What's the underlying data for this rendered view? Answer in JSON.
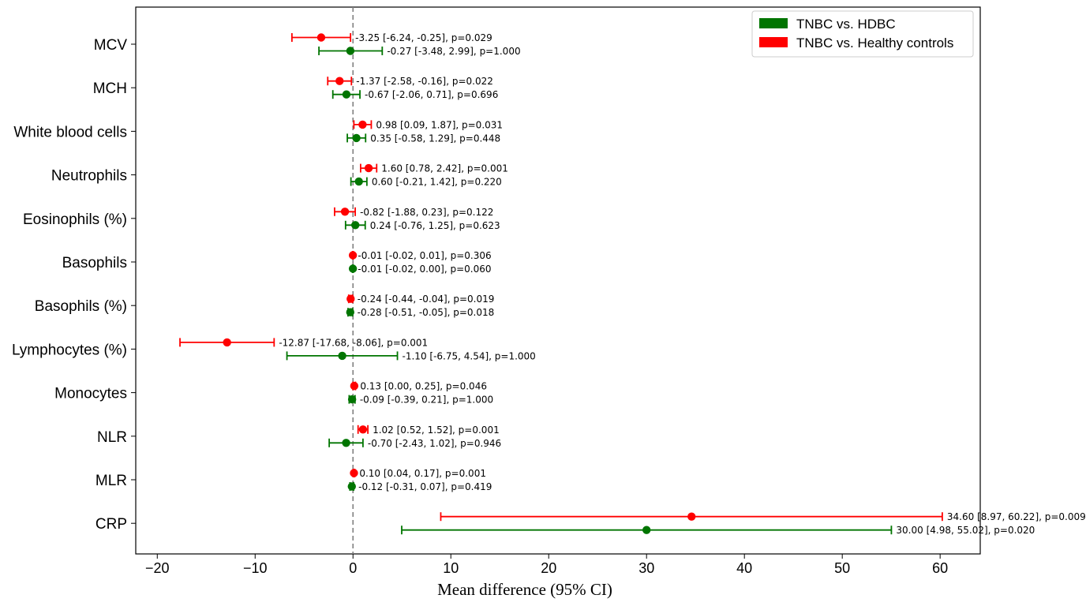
{
  "chart_data": {
    "type": "forest",
    "title": "",
    "xlabel": "Mean difference (95% CI)",
    "ylabel": "",
    "xlim": [
      -22.2,
      64.1
    ],
    "xticks": [
      -20,
      -10,
      0,
      10,
      20,
      30,
      40,
      50,
      60
    ],
    "xtick_labels": [
      "−20",
      "−10",
      "0",
      "10",
      "20",
      "30",
      "40",
      "50",
      "60"
    ],
    "reference_line": 0,
    "grid": false,
    "legend_position": "top-right",
    "categories": [
      "MCV",
      "MCH",
      "White blood cells",
      "Neutrophils",
      "Eosinophils (%)",
      "Basophils",
      "Basophils (%)",
      "Lymphocytes (%)",
      "Monocytes",
      "NLR",
      "MLR",
      "CRP"
    ],
    "series": [
      {
        "name": "TNBC vs. Healthy controls",
        "color": "#ff0000",
        "points": [
          {
            "mean": -3.25,
            "low": -6.24,
            "high": -0.25,
            "label": "-3.25 [-6.24, -0.25], p=0.029"
          },
          {
            "mean": -1.37,
            "low": -2.58,
            "high": -0.16,
            "label": "-1.37 [-2.58, -0.16], p=0.022"
          },
          {
            "mean": 0.98,
            "low": 0.09,
            "high": 1.87,
            "label": "0.98 [0.09, 1.87], p=0.031"
          },
          {
            "mean": 1.6,
            "low": 0.78,
            "high": 2.42,
            "label": "1.60 [0.78, 2.42], p=0.001"
          },
          {
            "mean": -0.82,
            "low": -1.88,
            "high": 0.23,
            "label": "-0.82 [-1.88, 0.23], p=0.122"
          },
          {
            "mean": -0.01,
            "low": -0.02,
            "high": 0.01,
            "label": "-0.01 [-0.02, 0.01], p=0.306"
          },
          {
            "mean": -0.24,
            "low": -0.44,
            "high": -0.04,
            "label": "-0.24 [-0.44, -0.04], p=0.019"
          },
          {
            "mean": -12.87,
            "low": -17.68,
            "high": -8.06,
            "label": "-12.87 [-17.68, -8.06], p=0.001"
          },
          {
            "mean": 0.13,
            "low": 0.0,
            "high": 0.25,
            "label": "0.13 [0.00, 0.25], p=0.046"
          },
          {
            "mean": 1.02,
            "low": 0.52,
            "high": 1.52,
            "label": "1.02 [0.52, 1.52], p=0.001"
          },
          {
            "mean": 0.1,
            "low": 0.04,
            "high": 0.17,
            "label": "0.10 [0.04, 0.17], p=0.001"
          },
          {
            "mean": 34.6,
            "low": 8.97,
            "high": 60.22,
            "label": "34.60 [8.97, 60.22], p=0.009"
          }
        ]
      },
      {
        "name": "TNBC vs. HDBC",
        "color": "#007500",
        "points": [
          {
            "mean": -0.27,
            "low": -3.48,
            "high": 2.99,
            "label": "-0.27 [-3.48, 2.99], p=1.000"
          },
          {
            "mean": -0.67,
            "low": -2.06,
            "high": 0.71,
            "label": "-0.67 [-2.06, 0.71], p=0.696"
          },
          {
            "mean": 0.35,
            "low": -0.58,
            "high": 1.29,
            "label": "0.35 [-0.58, 1.29], p=0.448"
          },
          {
            "mean": 0.6,
            "low": -0.21,
            "high": 1.42,
            "label": "0.60 [-0.21, 1.42], p=0.220"
          },
          {
            "mean": 0.24,
            "low": -0.76,
            "high": 1.25,
            "label": "0.24 [-0.76, 1.25], p=0.623"
          },
          {
            "mean": -0.01,
            "low": -0.02,
            "high": 0.0,
            "label": "-0.01 [-0.02, 0.00], p=0.060"
          },
          {
            "mean": -0.28,
            "low": -0.51,
            "high": -0.05,
            "label": "-0.28 [-0.51, -0.05], p=0.018"
          },
          {
            "mean": -1.1,
            "low": -6.75,
            "high": 4.54,
            "label": "-1.10 [-6.75, 4.54], p=1.000"
          },
          {
            "mean": -0.09,
            "low": -0.39,
            "high": 0.21,
            "label": "-0.09 [-0.39, 0.21], p=1.000"
          },
          {
            "mean": -0.7,
            "low": -2.43,
            "high": 1.02,
            "label": "-0.70 [-2.43, 1.02], p=0.946"
          },
          {
            "mean": -0.12,
            "low": -0.31,
            "high": 0.07,
            "label": "-0.12 [-0.31, 0.07], p=0.419"
          },
          {
            "mean": 30.0,
            "low": 4.98,
            "high": 55.02,
            "label": "30.00 [4.98, 55.02], p=0.020"
          }
        ]
      }
    ],
    "legend": [
      {
        "label": "TNBC vs. HDBC",
        "color": "#007500"
      },
      {
        "label": "TNBC vs. Healthy controls",
        "color": "#ff0000"
      }
    ]
  }
}
